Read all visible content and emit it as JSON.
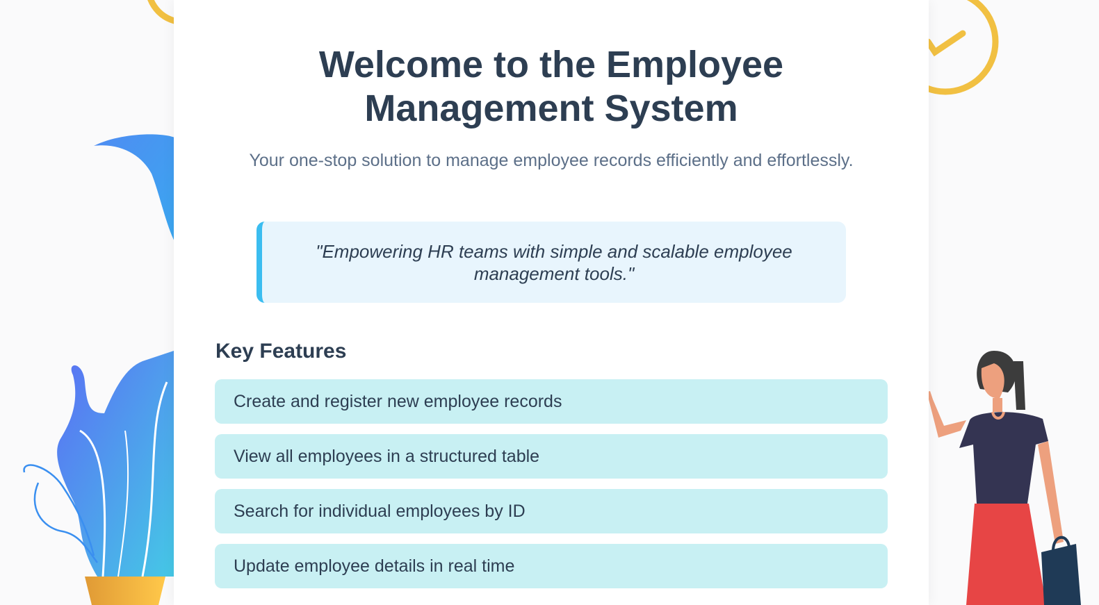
{
  "hero": {
    "title_line1": "Welcome to the Employee",
    "title_line2": "Management System",
    "subtitle": "Your one-stop solution to manage employee records efficiently and effortlessly."
  },
  "quote": {
    "line1": "\"Empowering HR teams with simple and scalable employee",
    "line2": "management tools.\""
  },
  "features": {
    "heading": "Key Features",
    "items": [
      "Create and register new employee records",
      "View all employees in a structured table",
      "Search for individual employees by ID",
      "Update employee details in real time"
    ]
  },
  "colors": {
    "heading_text": "#2d3e52",
    "subtitle_text": "#5c6f88",
    "quote_background": "#e8f5fd",
    "quote_accent": "#3bbdf0",
    "feature_background": "#c8f0f3",
    "clock_yellow": "#f1c042",
    "plant_blue": "#4f8cf2",
    "plant_cyan": "#45c8e6",
    "pot_orange": "#f3a73a",
    "person_skirt": "#e74545",
    "person_top": "#343452",
    "bag_navy": "#1f3a56"
  },
  "icons": {
    "left_decor": "plant-illustration",
    "right_decor": "woman-with-bag-illustration",
    "top_decor": "clock-illustration"
  }
}
